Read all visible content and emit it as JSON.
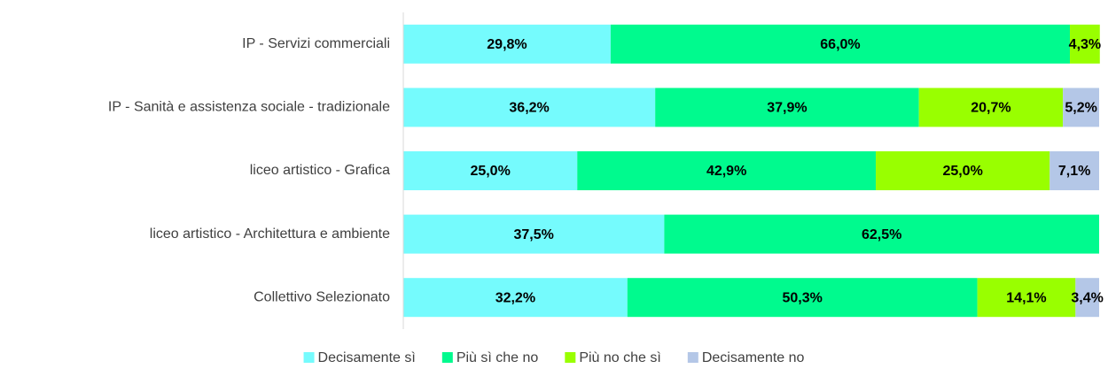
{
  "chart_data": {
    "type": "stacked-bar-horizontal",
    "categories": [
      "IP - Servizi commerciali",
      "IP - Sanità e assistenza sociale - tradizionale",
      "liceo artistico - Grafica",
      "liceo artistico - Architettura e ambiente",
      "Collettivo Selezionato"
    ],
    "xlim": [
      0,
      100
    ],
    "legend": "bottom",
    "series": [
      {
        "name": "Decisamente sì",
        "color": "#75fbfd",
        "values": [
          29.8,
          36.2,
          25.0,
          37.5,
          32.2
        ],
        "value_labels": [
          "29,8%",
          "36,2%",
          "25,0%",
          "37,5%",
          "32,2%"
        ]
      },
      {
        "name": "Più sì che no",
        "color": "#00fa8e",
        "values": [
          66.0,
          37.9,
          42.9,
          62.5,
          50.3
        ],
        "value_labels": [
          "66,0%",
          "37,9%",
          "42,9%",
          "62,5%",
          "50,3%"
        ]
      },
      {
        "name": "Più no che sì",
        "color": "#99ff00",
        "values": [
          4.3,
          20.7,
          25.0,
          null,
          14.1
        ],
        "value_labels": [
          "4,3%",
          "20,7%",
          "25,0%",
          null,
          "14,1%"
        ]
      },
      {
        "name": "Decisamente no",
        "color": "#b4c7e7",
        "values": [
          null,
          5.2,
          7.1,
          null,
          3.4
        ],
        "value_labels": [
          null,
          "5,2%",
          "7,1%",
          null,
          "3,4%"
        ]
      }
    ]
  }
}
